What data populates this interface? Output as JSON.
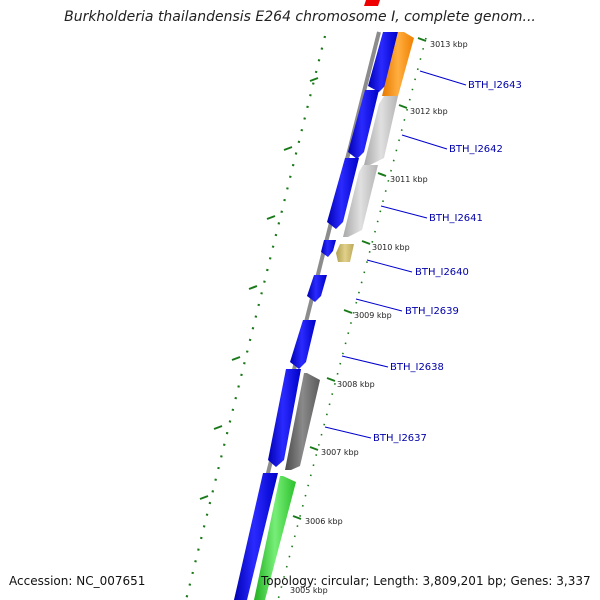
{
  "title": "Burkholderia thailandensis E264 chromosome I, complete genom...",
  "footer": {
    "accession": "Accession: NC_007651",
    "topology": "Topology: circular; Length: 3,809,201 bp; Genes: 3,337"
  },
  "colors": {
    "backbone": "#8c8c8c",
    "forward_cds": "#1010e0",
    "reverse_cds_gray": "#c8c8c8",
    "reverse_cds_dark": "#6e6e6e",
    "orange_cds": "#ff8c00",
    "tan_cds": "#c8b464",
    "green_cds": "#33cc33",
    "red_feature": "#ee0000",
    "ticks": "#1a7a1a",
    "labels": "#0000aa"
  },
  "kbp_ticks": [
    "3013 kbp",
    "3012 kbp",
    "3011 kbp",
    "3010 kbp",
    "3009 kbp",
    "3008 kbp",
    "3007 kbp",
    "3006 kbp",
    "3005 kbp"
  ],
  "gene_labels": [
    "BTH_I2643",
    "BTH_I2642",
    "BTH_I2641",
    "BTH_I2640",
    "BTH_I2639",
    "BTH_I2638",
    "BTH_I2637"
  ]
}
